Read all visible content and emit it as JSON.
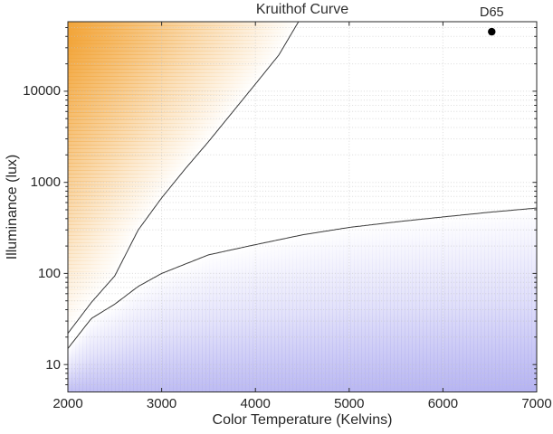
{
  "colors": {
    "warm_fill": "#F2A53A",
    "cool_fill": "#B5B3F1",
    "curve": "#3A3A3A",
    "axis": "#2A2A2A",
    "grid": "#C4C4C4",
    "point": "#000000",
    "text": "#262626",
    "background": "#FFFFFF"
  },
  "chart_data": {
    "type": "area",
    "title": "Kruithof Curve",
    "xlabel": "Color Temperature (Kelvins)",
    "ylabel": "Illuminance (lux)",
    "xlim": [
      2000,
      7000
    ],
    "ylim": [
      5,
      58000
    ],
    "yscale": "log",
    "grid": "dotted, major and log-minor lines",
    "x_ticks": [
      2000,
      3000,
      4000,
      5000,
      6000,
      7000
    ],
    "x_tick_labels": [
      "2000",
      "3000",
      "4000",
      "5000",
      "6000",
      "7000"
    ],
    "y_ticks": [
      10,
      100,
      1000,
      10000
    ],
    "y_tick_labels": [
      "10",
      "100",
      "1000",
      "10000"
    ],
    "series": [
      {
        "name": "upper-boundary",
        "description": "upper Kruithof boundary; region above/left shaded orange (light appears too warm/colorful)",
        "points": [
          [
            2000,
            22
          ],
          [
            2250,
            48
          ],
          [
            2500,
            94
          ],
          [
            2750,
            300
          ],
          [
            3000,
            675
          ],
          [
            3250,
            1400
          ],
          [
            3500,
            2800
          ],
          [
            3750,
            5800
          ],
          [
            4000,
            12000
          ],
          [
            4250,
            25000
          ],
          [
            4460,
            58000
          ]
        ]
      },
      {
        "name": "lower-boundary",
        "description": "lower Kruithof boundary; region below shaded blue (light appears dim/cold)",
        "points": [
          [
            2000,
            15
          ],
          [
            2250,
            32
          ],
          [
            2500,
            46
          ],
          [
            2750,
            72
          ],
          [
            3000,
            100
          ],
          [
            3500,
            160
          ],
          [
            4000,
            207
          ],
          [
            4500,
            265
          ],
          [
            5000,
            320
          ],
          [
            5500,
            368
          ],
          [
            6000,
            417
          ],
          [
            6500,
            470
          ],
          [
            7000,
            522
          ]
        ]
      }
    ],
    "point": {
      "label": "D65",
      "x": 6520,
      "y": 45000
    },
    "regions": [
      {
        "name": "too-warm",
        "color": "#F2A53A",
        "position": "above upper boundary, fades toward curve and downward"
      },
      {
        "name": "too-dim",
        "color": "#B5B3F1",
        "position": "below lower boundary, fades toward curve, strongest at bottom"
      }
    ]
  }
}
